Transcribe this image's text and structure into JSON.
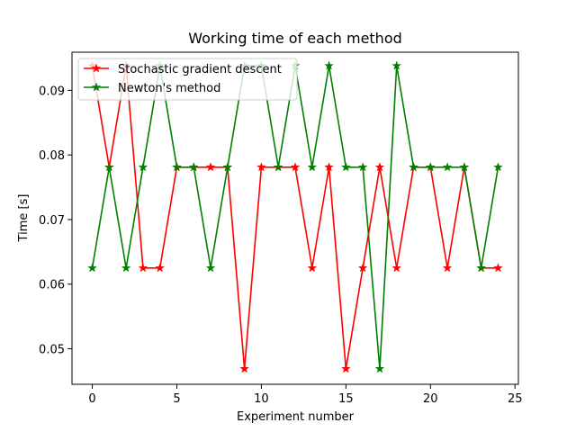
{
  "chart_data": {
    "type": "line",
    "title": "Working time of each method",
    "xlabel": "Experiment number",
    "ylabel": "Time [s]",
    "x": [
      0,
      1,
      2,
      3,
      4,
      5,
      6,
      7,
      8,
      9,
      10,
      11,
      12,
      13,
      14,
      15,
      16,
      17,
      18,
      19,
      20,
      21,
      22,
      23,
      24
    ],
    "xlim": [
      -1.2,
      25.2
    ],
    "ylim": [
      0.0445,
      0.0959
    ],
    "xticks": [
      0,
      5,
      10,
      15,
      20,
      25
    ],
    "yticks": [
      0.05,
      0.06,
      0.07,
      0.08,
      0.09
    ],
    "xtick_labels": [
      "0",
      "5",
      "10",
      "15",
      "20",
      "25"
    ],
    "ytick_labels": [
      "0.05",
      "0.06",
      "0.07",
      "0.08",
      "0.09"
    ],
    "grid": false,
    "legend_position": "top-left",
    "marker": "star",
    "series": [
      {
        "name": "Stochastic gradient descent",
        "color": "#ff0000",
        "values": [
          0.0938,
          0.0781,
          0.0938,
          0.0625,
          0.0625,
          0.0781,
          0.0781,
          0.0781,
          0.0781,
          0.0469,
          0.0781,
          0.0781,
          0.0781,
          0.0625,
          0.0781,
          0.0469,
          0.0625,
          0.0781,
          0.0625,
          0.0781,
          0.0781,
          0.0625,
          0.0781,
          0.0625,
          0.0625
        ]
      },
      {
        "name": "Newton's method",
        "color": "#008000",
        "values": [
          0.0625,
          0.0781,
          0.0625,
          0.0781,
          0.0938,
          0.0781,
          0.0781,
          0.0625,
          0.0781,
          0.0938,
          0.0938,
          0.0781,
          0.0938,
          0.0781,
          0.0938,
          0.0781,
          0.0781,
          0.0469,
          0.0938,
          0.0781,
          0.0781,
          0.0781,
          0.0781,
          0.0625,
          0.0781
        ]
      }
    ]
  }
}
